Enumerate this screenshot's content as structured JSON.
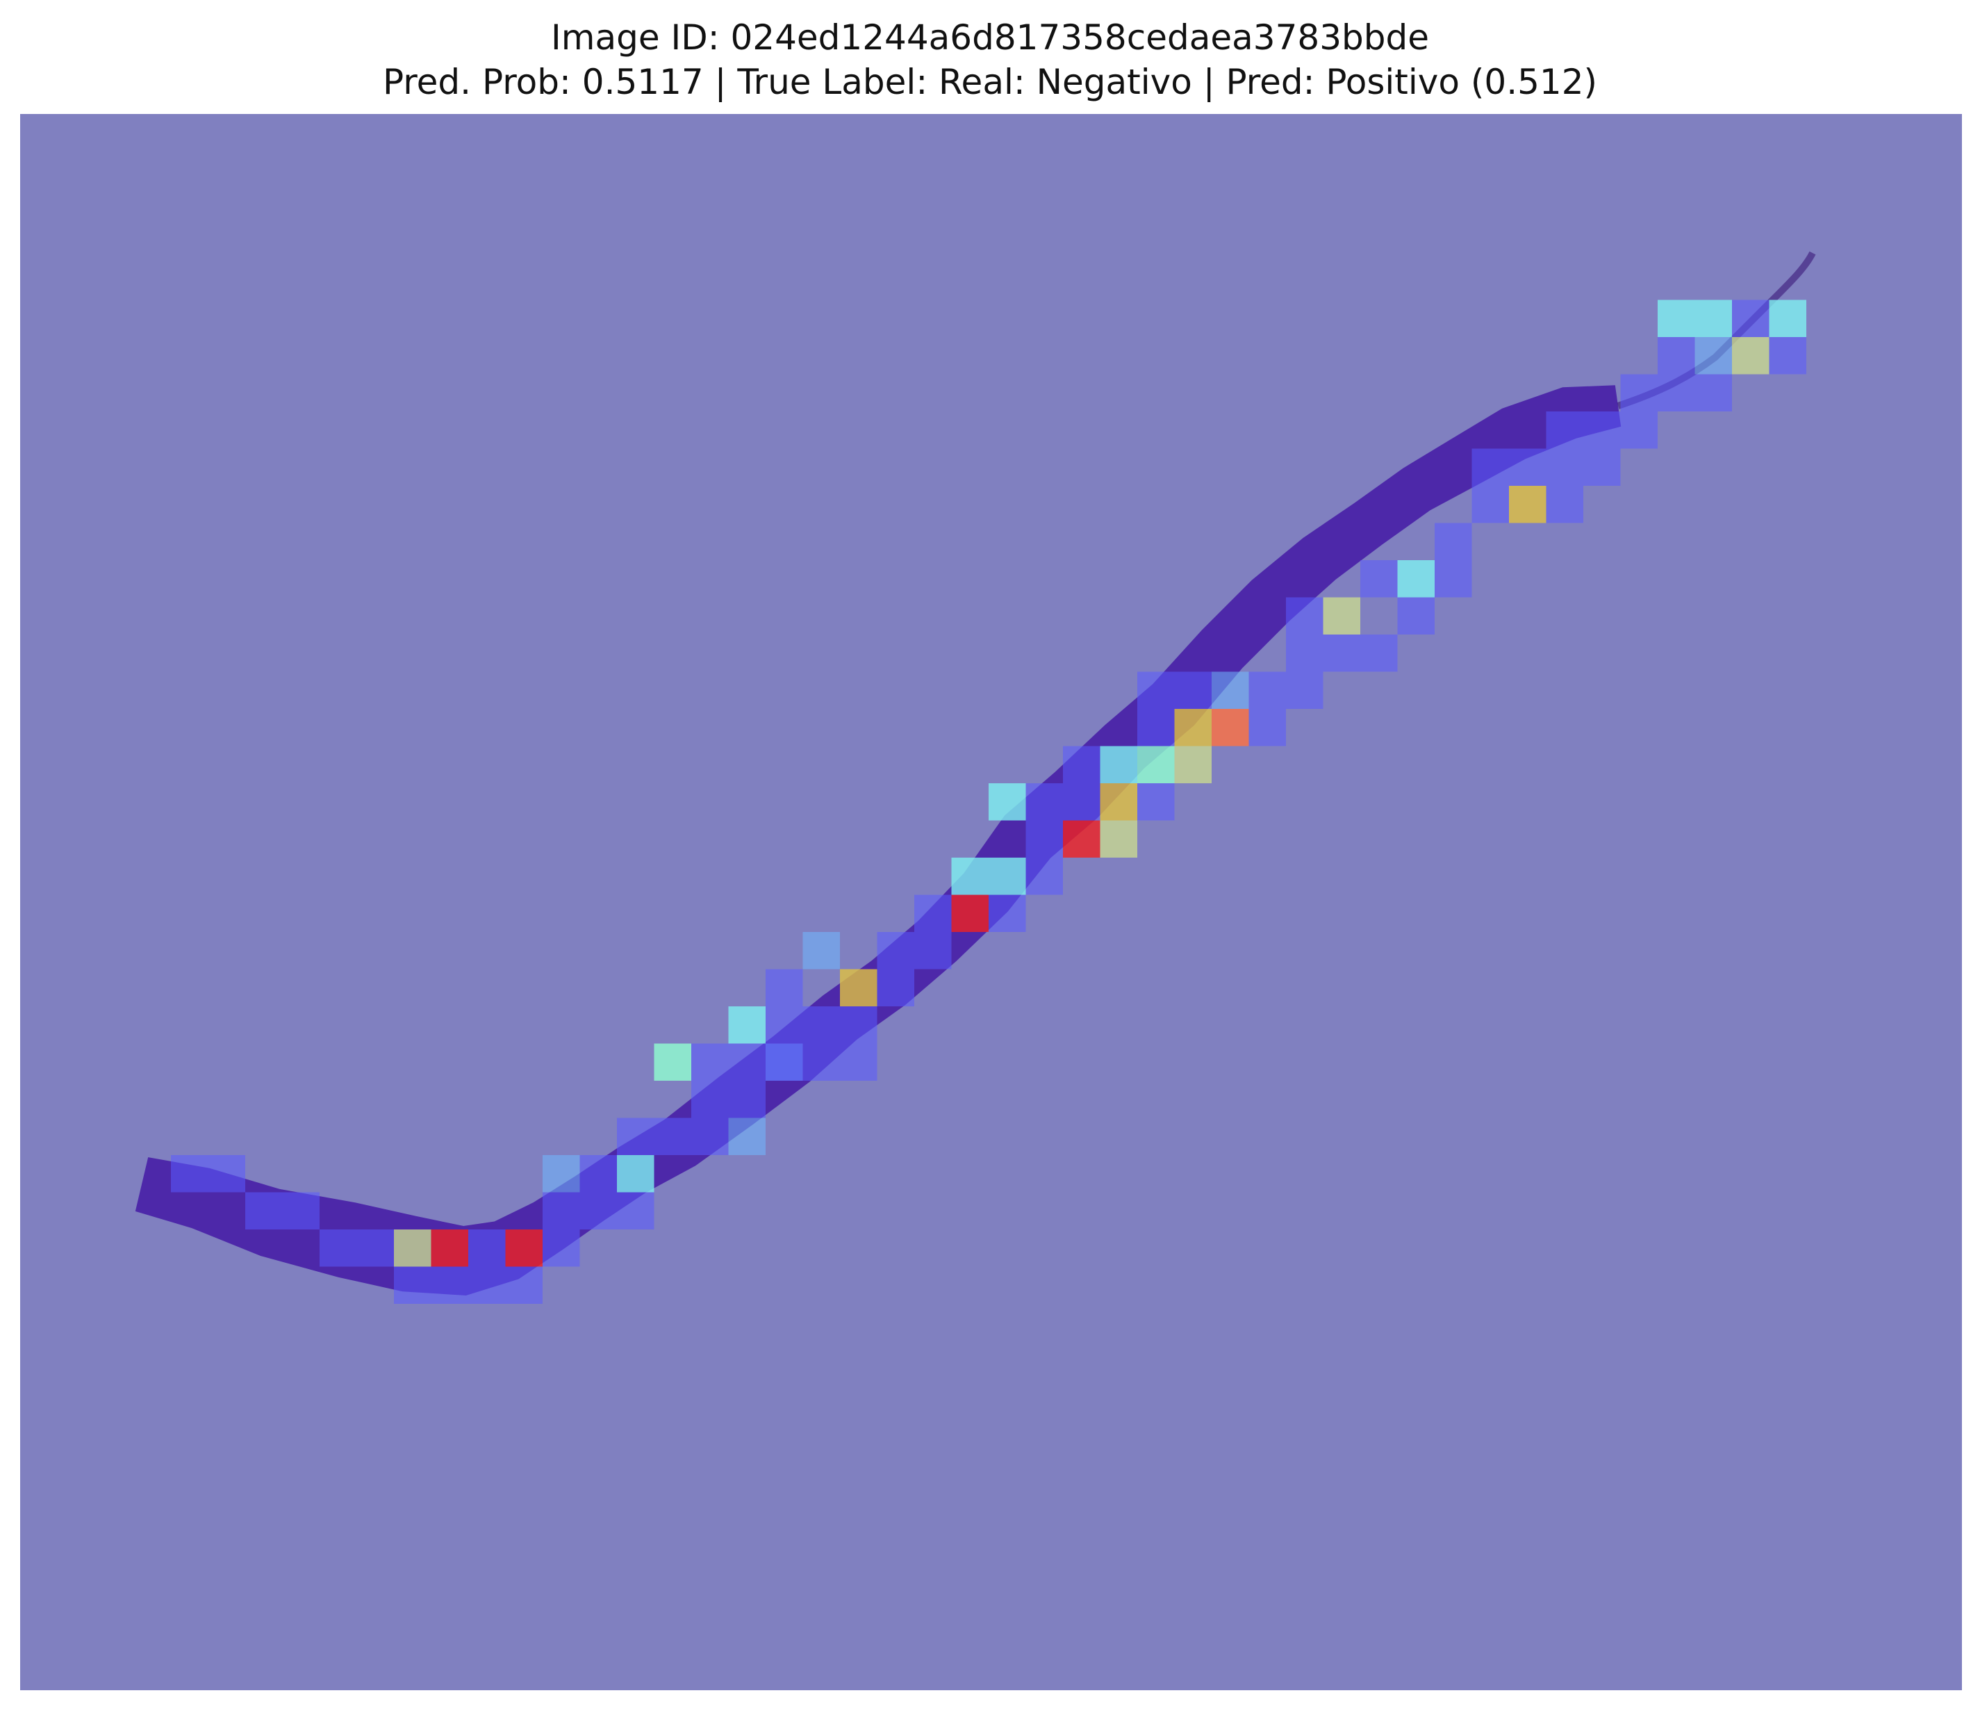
{
  "title": {
    "line1": "Image ID: 024ed1244a6d817358cedaea3783bbde",
    "line2": "Pred. Prob: 0.5117 | True Label: Real: Negativo | Pred: Positivo (0.512)"
  },
  "colors": {
    "background_overlay": "#8080c0",
    "tissue": "#4a23a8",
    "tissue_dark": "#3a1878",
    "tissue_light": "#6a2fc0",
    "low": "#5a5aff",
    "low_mid": "#6fb8ff",
    "mid": "#7ef0f0",
    "mid_high": "#c8d890",
    "high_yellow": "#e0c040",
    "high_orange": "#ff7040",
    "high_red": "#f02020",
    "mint": "#90ffd0",
    "teal": "#70d8d8"
  },
  "heatmap": {
    "description_free": true,
    "tiles": [
      {
        "c": 4,
        "r": 28,
        "v": 0.25
      },
      {
        "c": 5,
        "r": 28,
        "v": 0.22
      },
      {
        "c": 6,
        "r": 29,
        "v": 0.2
      },
      {
        "c": 7,
        "r": 29,
        "v": 0.2
      },
      {
        "c": 8,
        "r": 30,
        "v": 0.18
      },
      {
        "c": 9,
        "r": 30,
        "v": 0.28
      },
      {
        "c": 10,
        "r": 30,
        "v": 0.62
      },
      {
        "c": 11,
        "r": 30,
        "v": 0.97
      },
      {
        "c": 12,
        "r": 30,
        "v": 0.25
      },
      {
        "c": 13,
        "r": 30,
        "v": 0.99
      },
      {
        "c": 14,
        "r": 29,
        "v": 0.3
      },
      {
        "c": 14,
        "r": 28,
        "v": 0.45
      },
      {
        "c": 15,
        "r": 28,
        "v": 0.25
      },
      {
        "c": 16,
        "r": 27,
        "v": 0.3
      },
      {
        "c": 16,
        "r": 28,
        "v": 0.55
      },
      {
        "c": 17,
        "r": 27,
        "v": 0.4
      },
      {
        "c": 18,
        "r": 26,
        "v": 0.35
      },
      {
        "c": 19,
        "r": 26,
        "v": 0.35
      },
      {
        "c": 19,
        "r": 27,
        "v": 0.45
      },
      {
        "c": 19,
        "r": 25,
        "v": 0.35
      },
      {
        "c": 17,
        "r": 25,
        "v": 0.7
      },
      {
        "c": 18,
        "r": 25,
        "v": 0.3
      },
      {
        "c": 20,
        "r": 24,
        "v": 0.4
      },
      {
        "c": 20,
        "r": 25,
        "v": 0.45
      },
      {
        "c": 19,
        "r": 24,
        "v": 0.5
      },
      {
        "c": 20,
        "r": 25,
        "v": 0.3
      },
      {
        "c": 21,
        "r": 24,
        "v": 0.25
      },
      {
        "c": 22,
        "r": 24,
        "v": 0.3
      },
      {
        "c": 20,
        "r": 23,
        "v": 0.25
      },
      {
        "c": 22,
        "r": 23,
        "v": 0.8
      },
      {
        "c": 21,
        "r": 22,
        "v": 0.45
      },
      {
        "c": 23,
        "r": 22,
        "v": 0.25
      },
      {
        "c": 24,
        "r": 21,
        "v": 0.3
      },
      {
        "c": 24,
        "r": 22,
        "v": 0.25
      },
      {
        "c": 25,
        "r": 21,
        "v": 0.97
      },
      {
        "c": 25,
        "r": 20,
        "v": 0.55
      },
      {
        "c": 26,
        "r": 20,
        "v": 0.5
      },
      {
        "c": 26,
        "r": 21,
        "v": 0.3
      },
      {
        "c": 27,
        "r": 20,
        "v": 0.3
      },
      {
        "c": 28,
        "r": 19,
        "v": 0.97
      },
      {
        "c": 27,
        "r": 19,
        "v": 0.3
      },
      {
        "c": 26,
        "r": 18,
        "v": 0.55
      },
      {
        "c": 29,
        "r": 18,
        "v": 0.82
      },
      {
        "c": 29,
        "r": 19,
        "v": 0.6
      },
      {
        "c": 29,
        "r": 17,
        "v": 0.55
      },
      {
        "c": 28,
        "r": 17,
        "v": 0.3
      },
      {
        "c": 30,
        "r": 17,
        "v": 0.75
      },
      {
        "c": 30,
        "r": 18,
        "v": 0.3
      },
      {
        "c": 31,
        "r": 16,
        "v": 0.8
      },
      {
        "c": 32,
        "r": 16,
        "v": 0.92
      },
      {
        "c": 31,
        "r": 15,
        "v": 0.35
      },
      {
        "c": 32,
        "r": 15,
        "v": 0.45
      },
      {
        "c": 33,
        "r": 15,
        "v": 0.4
      },
      {
        "c": 30,
        "r": 16,
        "v": 0.3
      },
      {
        "c": 31,
        "r": 17,
        "v": 0.6
      },
      {
        "c": 35,
        "r": 13,
        "v": 0.6
      },
      {
        "c": 34,
        "r": 13,
        "v": 0.3
      },
      {
        "c": 36,
        "r": 12,
        "v": 0.35
      },
      {
        "c": 37,
        "r": 12,
        "v": 0.55
      },
      {
        "c": 38,
        "r": 11,
        "v": 0.3
      },
      {
        "c": 39,
        "r": 10,
        "v": 0.3
      },
      {
        "c": 40,
        "r": 10,
        "v": 0.82
      },
      {
        "c": 41,
        "r": 10,
        "v": 0.3
      },
      {
        "c": 39,
        "r": 9,
        "v": 0.3
      },
      {
        "c": 41,
        "r": 9,
        "v": 0.3
      },
      {
        "c": 42,
        "r": 9,
        "v": 0.35
      },
      {
        "c": 43,
        "r": 8,
        "v": 0.3
      },
      {
        "c": 43,
        "r": 7,
        "v": 0.25
      },
      {
        "c": 44,
        "r": 7,
        "v": 0.3
      },
      {
        "c": 45,
        "r": 7,
        "v": 0.3
      },
      {
        "c": 44,
        "r": 6,
        "v": 0.4
      },
      {
        "c": 45,
        "r": 6,
        "v": 0.45
      },
      {
        "c": 46,
        "r": 6,
        "v": 0.65
      },
      {
        "c": 44,
        "r": 5,
        "v": 0.5
      },
      {
        "c": 45,
        "r": 5,
        "v": 0.55
      },
      {
        "c": 46,
        "r": 5,
        "v": 0.35
      },
      {
        "c": 47,
        "r": 5,
        "v": 0.55
      },
      {
        "c": 47,
        "r": 6,
        "v": 0.35
      },
      {
        "c": 38,
        "r": 12,
        "v": 0.3
      },
      {
        "c": 37,
        "r": 13,
        "v": 0.3
      },
      {
        "c": 36,
        "r": 14,
        "v": 0.25
      },
      {
        "c": 35,
        "r": 14,
        "v": 0.3
      },
      {
        "c": 34,
        "r": 14,
        "v": 0.25
      },
      {
        "c": 33,
        "r": 16,
        "v": 0.3
      },
      {
        "c": 34,
        "r": 15,
        "v": 0.25
      },
      {
        "c": 23,
        "r": 23,
        "v": 0.3
      },
      {
        "c": 22,
        "r": 25,
        "v": 0.25
      },
      {
        "c": 21,
        "r": 25,
        "v": 0.3
      },
      {
        "c": 18,
        "r": 27,
        "v": 0.3
      },
      {
        "c": 15,
        "r": 29,
        "v": 0.3
      },
      {
        "c": 12,
        "r": 31,
        "v": 0.35
      },
      {
        "c": 13,
        "r": 31,
        "v": 0.25
      },
      {
        "c": 14,
        "r": 30,
        "v": 0.3
      },
      {
        "c": 16,
        "r": 29,
        "v": 0.25
      },
      {
        "c": 10,
        "r": 31,
        "v": 0.25
      },
      {
        "c": 11,
        "r": 31,
        "v": 0.3
      },
      {
        "c": 28,
        "r": 18,
        "v": 0.3
      },
      {
        "c": 27,
        "r": 18,
        "v": 0.3
      },
      {
        "c": 30,
        "r": 15,
        "v": 0.3
      },
      {
        "c": 42,
        "r": 8,
        "v": 0.3
      },
      {
        "c": 41,
        "r": 8,
        "v": 0.3
      },
      {
        "c": 40,
        "r": 9,
        "v": 0.3
      }
    ]
  }
}
